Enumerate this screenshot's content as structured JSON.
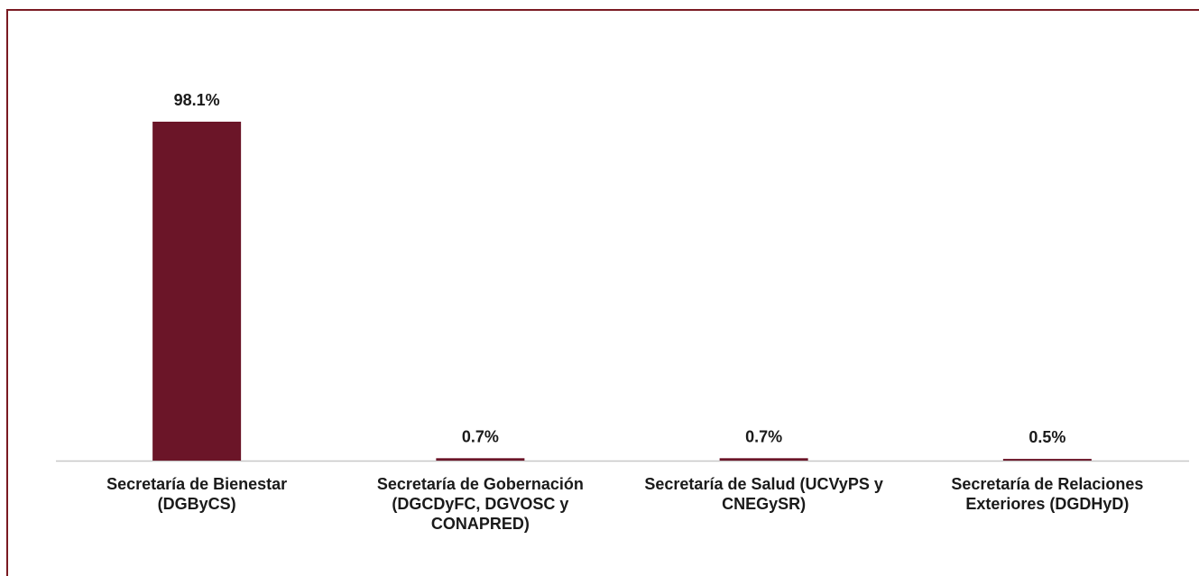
{
  "chart_data": {
    "type": "bar",
    "categories": [
      "Secretaría de Bienestar (DGByCS)",
      "Secretaría de Gobernación (DGCDyFC, DGVOSC y CONAPRED)",
      "Secretaría de Salud (UCVyPS y CNEGySR)",
      "Secretaría de Relaciones Exteriores (DGDHyD)"
    ],
    "values": [
      98.1,
      0.7,
      0.7,
      0.5
    ],
    "value_labels": [
      "98.1%",
      "0.7%",
      "0.7%",
      "0.5%"
    ],
    "color": "#6b1528"
  }
}
